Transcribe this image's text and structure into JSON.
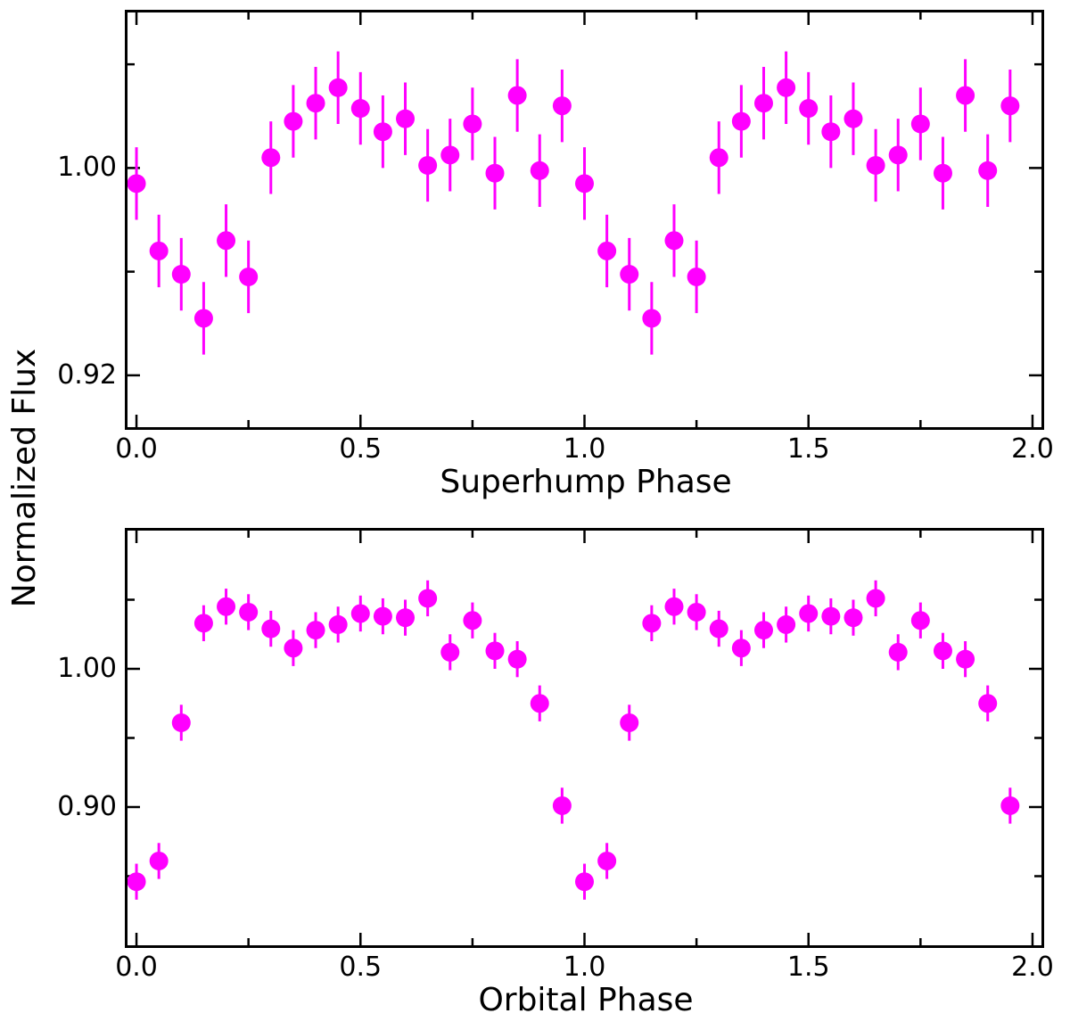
{
  "figure": {
    "background": "#ffffff",
    "axis_color": "#000000",
    "marker_color": "#ff00ff",
    "shared_ylabel": "Normalized Flux"
  },
  "chart_data": [
    {
      "type": "scatter",
      "panel": "top",
      "title": "",
      "xlabel": "Superhump Phase",
      "ylabel": "Normalized Flux",
      "xlim": [
        -0.02,
        2.02
      ],
      "ylim": [
        0.9,
        1.06
      ],
      "grid": false,
      "legend": false,
      "xticks": {
        "major": [
          0.0,
          0.5,
          1.0,
          1.5,
          2.0
        ],
        "labels": [
          "0.0",
          "0.5",
          "1.0",
          "1.5",
          "2.0"
        ],
        "minor": [
          0.25,
          0.75,
          1.25,
          1.75
        ]
      },
      "yticks": {
        "major": [
          1.0,
          0.92
        ],
        "labels": [
          "1.00",
          "0.92"
        ],
        "minor": [
          1.04,
          0.96
        ]
      },
      "series": [
        {
          "name": "superhump-phase-folded-flux",
          "color": "#ff00ff",
          "marker": "circle",
          "marker_radius": 10.5,
          "x": [
            0.0,
            0.05,
            0.1,
            0.15,
            0.2,
            0.25,
            0.3,
            0.35,
            0.4,
            0.45,
            0.5,
            0.55,
            0.6,
            0.65,
            0.7,
            0.75,
            0.8,
            0.85,
            0.9,
            0.95,
            1.0,
            1.05,
            1.1,
            1.15,
            1.2,
            1.25,
            1.3,
            1.35,
            1.4,
            1.45,
            1.5,
            1.55,
            1.6,
            1.65,
            1.7,
            1.75,
            1.8,
            1.85,
            1.9,
            1.95
          ],
          "y": [
            0.994,
            0.968,
            0.959,
            0.942,
            0.972,
            0.958,
            1.004,
            1.018,
            1.025,
            1.031,
            1.023,
            1.014,
            1.019,
            1.001,
            1.005,
            1.017,
            0.998,
            1.028,
            0.999,
            1.024,
            0.994,
            0.968,
            0.959,
            0.942,
            0.972,
            0.958,
            1.004,
            1.018,
            1.025,
            1.031,
            1.023,
            1.014,
            1.019,
            1.001,
            1.005,
            1.017,
            0.998,
            1.028,
            0.999,
            1.024
          ],
          "yerr": 0.014
        }
      ]
    },
    {
      "type": "scatter",
      "panel": "bottom",
      "title": "",
      "xlabel": "Orbital Phase",
      "ylabel": "Normalized Flux",
      "xlim": [
        -0.02,
        2.02
      ],
      "ylim": [
        0.8,
        1.1
      ],
      "grid": false,
      "legend": false,
      "xticks": {
        "major": [
          0.0,
          0.5,
          1.0,
          1.5,
          2.0
        ],
        "labels": [
          "0.0",
          "0.5",
          "1.0",
          "1.5",
          "2.0"
        ],
        "minor": [
          0.25,
          0.75,
          1.25,
          1.75
        ]
      },
      "yticks": {
        "major": [
          1.0,
          0.9
        ],
        "labels": [
          "1.00",
          "0.90"
        ],
        "minor": [
          1.05,
          0.95,
          0.85
        ]
      },
      "series": [
        {
          "name": "orbital-phase-folded-flux",
          "color": "#ff00ff",
          "marker": "circle",
          "marker_radius": 10.5,
          "x": [
            0.0,
            0.05,
            0.1,
            0.15,
            0.2,
            0.25,
            0.3,
            0.35,
            0.4,
            0.45,
            0.5,
            0.55,
            0.6,
            0.65,
            0.7,
            0.75,
            0.8,
            0.85,
            0.9,
            0.95,
            1.0,
            1.05,
            1.1,
            1.15,
            1.2,
            1.25,
            1.3,
            1.35,
            1.4,
            1.45,
            1.5,
            1.55,
            1.6,
            1.65,
            1.7,
            1.75,
            1.8,
            1.85,
            1.9,
            1.95
          ],
          "y": [
            0.846,
            0.861,
            0.961,
            1.033,
            1.045,
            1.041,
            1.029,
            1.015,
            1.028,
            1.032,
            1.04,
            1.038,
            1.037,
            1.051,
            1.012,
            1.035,
            1.013,
            1.007,
            0.975,
            0.901,
            0.846,
            0.861,
            0.961,
            1.033,
            1.045,
            1.041,
            1.029,
            1.015,
            1.028,
            1.032,
            1.04,
            1.038,
            1.037,
            1.051,
            1.012,
            1.035,
            1.013,
            1.007,
            0.975,
            0.901
          ],
          "yerr": 0.013
        }
      ]
    }
  ]
}
